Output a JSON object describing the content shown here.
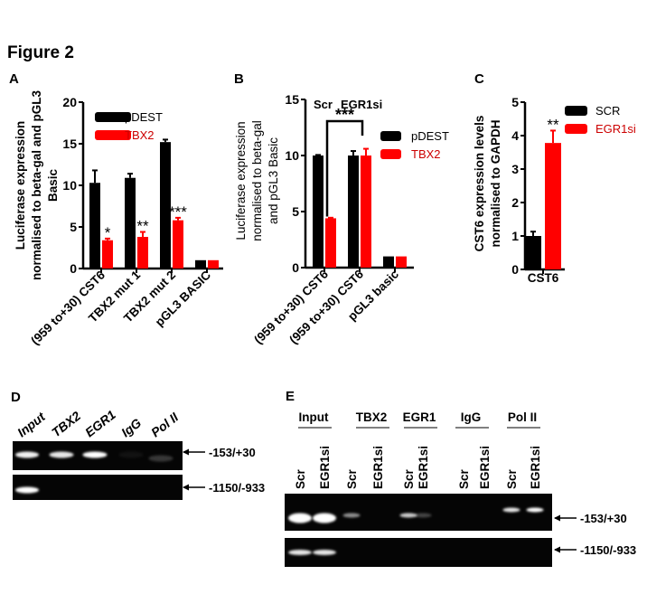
{
  "figure_title": "Figure 2",
  "panel_labels": {
    "a": "A",
    "b": "B",
    "c": "C",
    "d": "D",
    "e": "E"
  },
  "colors": {
    "black_series": "#000000",
    "red_series": "#ff0000",
    "red_text": "#cc0000"
  },
  "chart_data": [
    {
      "panel": "A",
      "type": "bar",
      "categories": [
        "(959 to+30) CST6",
        "TBX2 mut 1",
        "TBX2 mut 2",
        "pGL3 BASIC"
      ],
      "ylabel": [
        "Luciferase expression",
        "normalised to beta-gal and pGL3",
        "Basic"
      ],
      "ylim": [
        0,
        20
      ],
      "yticks": [
        "0",
        "5",
        "10",
        "15",
        "20"
      ],
      "legend_position": "top-right",
      "series": [
        {
          "name": "pDEST",
          "color": "#000000",
          "values": [
            10.3,
            10.9,
            15.2,
            1.0
          ],
          "error": [
            1.5,
            0.5,
            0.3,
            0.0
          ]
        },
        {
          "name": "TBX2",
          "color": "#ff0000",
          "values": [
            3.4,
            3.8,
            5.8,
            1.0
          ],
          "error": [
            0.2,
            0.6,
            0.3,
            0.0
          ]
        }
      ],
      "significance": [
        {
          "category": 0,
          "series": 1,
          "label": "*"
        },
        {
          "category": 1,
          "series": 1,
          "label": "**"
        },
        {
          "category": 2,
          "series": 1,
          "label": "***"
        }
      ]
    },
    {
      "panel": "B",
      "type": "bar",
      "categories": [
        "(959 to+30) CST6",
        "(959 to+30) CST6",
        "pGL3 basic"
      ],
      "group_labels": [
        "Scr",
        "EGR1si"
      ],
      "ylabel": [
        "Luciferase expression",
        "normalised to beta-gal",
        "and pGL3 Basic"
      ],
      "ylim": [
        0,
        15
      ],
      "yticks": [
        "0",
        "5",
        "10",
        "15"
      ],
      "legend_position": "right",
      "series": [
        {
          "name": "pDEST",
          "color": "#000000",
          "values": [
            10.0,
            10.0,
            1.0
          ],
          "error": [
            0.05,
            0.4,
            0.0
          ]
        },
        {
          "name": "TBX2",
          "color": "#ff0000",
          "values": [
            4.4,
            10.0,
            1.0
          ],
          "error": [
            0.05,
            0.6,
            0.0
          ]
        }
      ],
      "bracket": {
        "label": "***",
        "from": {
          "category": 0,
          "series": 1
        },
        "to": {
          "category": 1,
          "series": 1
        }
      }
    },
    {
      "panel": "C",
      "type": "bar",
      "categories": [
        "CST6"
      ],
      "ylabel": [
        "CST6 expression levels",
        "normalised to GAPDH"
      ],
      "ylim": [
        0,
        5
      ],
      "yticks": [
        "0",
        "1",
        "2",
        "3",
        "4",
        "5"
      ],
      "legend_position": "top-right",
      "series": [
        {
          "name": "SCR",
          "color": "#000000",
          "values": [
            1.0
          ],
          "error": [
            0.13
          ]
        },
        {
          "name": "EGR1si",
          "color": "#ff0000",
          "values": [
            3.78
          ],
          "error": [
            0.37
          ]
        }
      ],
      "significance": [
        {
          "category": 0,
          "series": 1,
          "label": "**"
        }
      ]
    }
  ],
  "gel_d": {
    "lanes": [
      "Input",
      "TBX2",
      "EGR1",
      "IgG",
      "Pol II"
    ],
    "rows": [
      {
        "label": "-153/+30",
        "bands": [
          0.95,
          0.9,
          1.0,
          0.05,
          0.2
        ]
      },
      {
        "label": "-1150/-933",
        "bands": [
          1.0,
          0,
          0,
          0,
          0
        ]
      }
    ]
  },
  "gel_e": {
    "groups": [
      "Input",
      "TBX2",
      "EGR1",
      "IgG",
      "Pol II"
    ],
    "lanes": [
      "Scr",
      "EGR1si",
      "Scr",
      "EGR1si",
      "Scr",
      "EGR1si",
      "Scr",
      "EGR1si",
      "Scr",
      "EGR1si"
    ],
    "rows": [
      {
        "label": "-153/+30",
        "bands": [
          1.0,
          1.0,
          0.55,
          0,
          0.8,
          0.25,
          0,
          0,
          0.9,
          1.0
        ]
      },
      {
        "label": "-1150/-933",
        "bands": [
          0.9,
          0.9,
          0,
          0,
          0,
          0,
          0,
          0,
          0,
          0
        ]
      }
    ]
  }
}
